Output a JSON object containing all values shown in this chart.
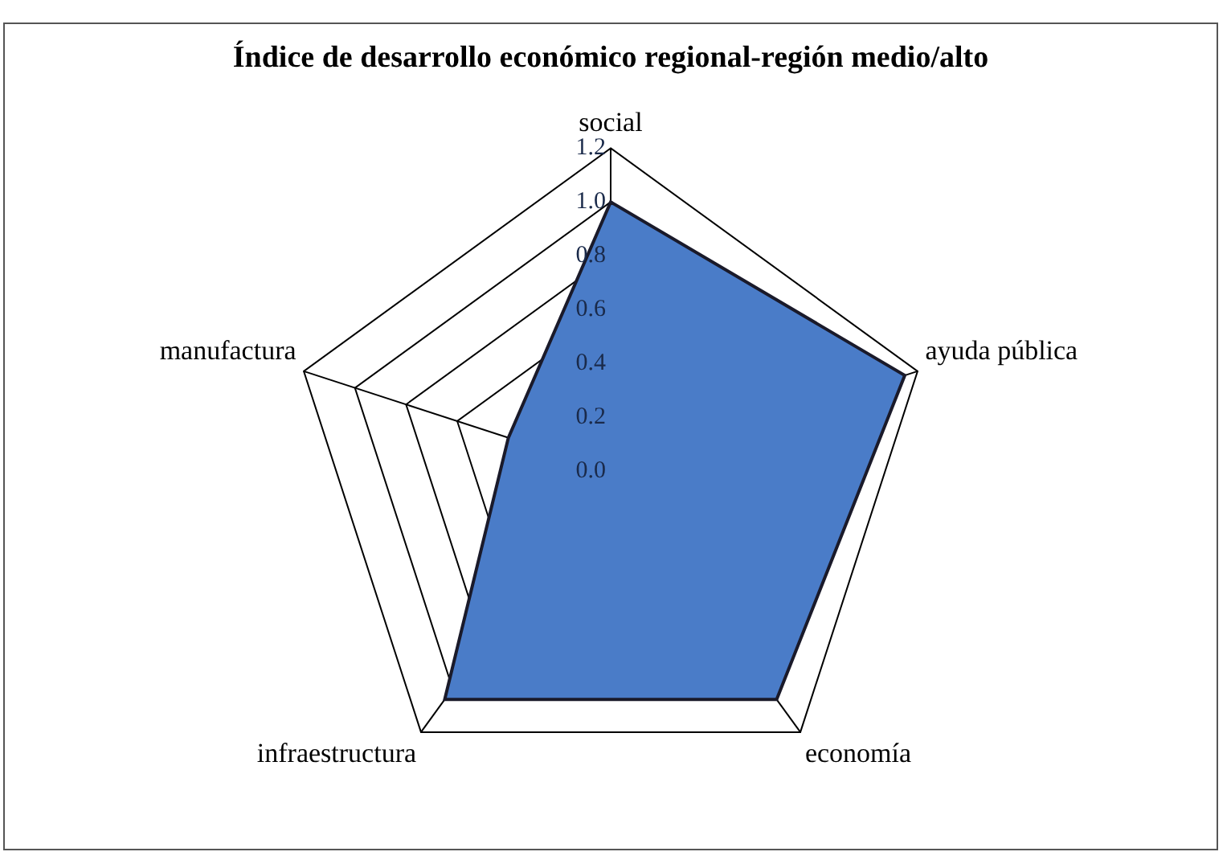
{
  "chart_data": {
    "type": "radar",
    "title": "Índice de desarrollo económico regional-región medio/alto",
    "categories": [
      "social",
      "ayuda pública",
      "economía",
      "infraestructura",
      "manufactura"
    ],
    "series": [
      {
        "color": "#4a7cc8",
        "values": [
          1.0,
          1.15,
          1.05,
          1.05,
          0.4
        ]
      }
    ],
    "ylim": [
      0,
      1.2
    ],
    "yticks": [
      {
        "value": 0,
        "label": "0.0"
      },
      0.2,
      0.4,
      0.6,
      0.8,
      {
        "value": 1,
        "label": "1.0"
      },
      1.2
    ],
    "grid": true,
    "legend": false
  }
}
